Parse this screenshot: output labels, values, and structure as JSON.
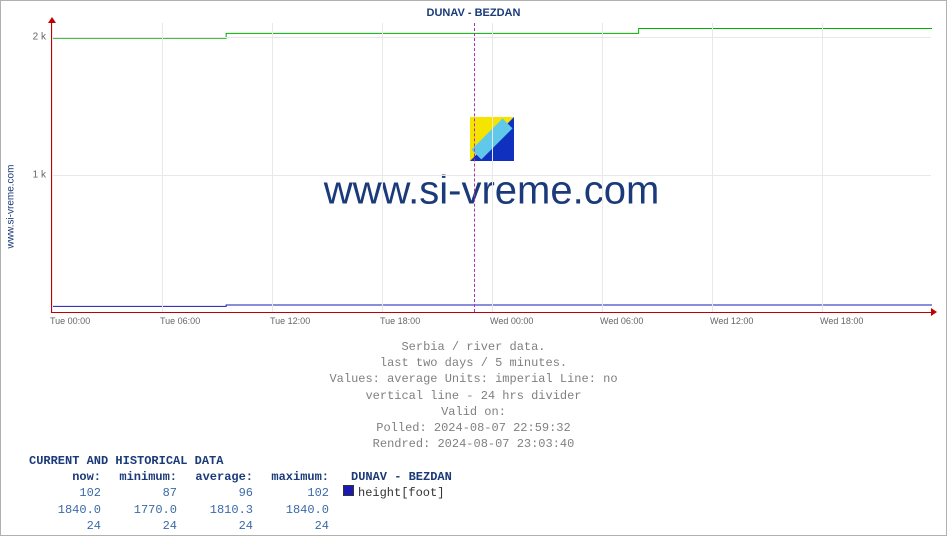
{
  "title": "DUNAV -  BEZDAN",
  "y_axis_label": "www.si-vreme.com",
  "watermark_text": "www.si-vreme.com",
  "chart": {
    "type": "line",
    "background_color": "#ffffff",
    "grid_color": "#e8e8e8",
    "axis_color": "#c00000",
    "divider_color": "#b030b0",
    "ylim": [
      0,
      2100
    ],
    "yticks": [
      {
        "pos": 1000,
        "label": "1 k"
      },
      {
        "pos": 2000,
        "label": "2 k"
      }
    ],
    "x_span_hours": 48,
    "xticks": [
      {
        "h": 0,
        "label": "Tue 00:00"
      },
      {
        "h": 6,
        "label": "Tue 06:00"
      },
      {
        "h": 12,
        "label": "Tue 12:00"
      },
      {
        "h": 18,
        "label": "Tue 18:00"
      },
      {
        "h": 24,
        "label": "Wed 00:00"
      },
      {
        "h": 30,
        "label": "Wed 06:00"
      },
      {
        "h": 36,
        "label": "Wed 12:00"
      },
      {
        "h": 42,
        "label": "Wed 18:00"
      }
    ],
    "divider_at_h": 23,
    "series": [
      {
        "name": "green",
        "color": "#00b000",
        "points": [
          {
            "h": 0,
            "v": 1990
          },
          {
            "h": 9.5,
            "v": 1990
          },
          {
            "h": 9.5,
            "v": 2025
          },
          {
            "h": 32,
            "v": 2025
          },
          {
            "h": 32,
            "v": 2060
          },
          {
            "h": 48,
            "v": 2060
          }
        ]
      },
      {
        "name": "blue",
        "color": "#1a1ab0",
        "points": [
          {
            "h": 0,
            "v": 48
          },
          {
            "h": 9.5,
            "v": 48
          },
          {
            "h": 9.5,
            "v": 58
          },
          {
            "h": 48,
            "v": 58
          }
        ]
      }
    ]
  },
  "caption": {
    "line1": "Serbia / river data.",
    "line2": "last two days / 5 minutes.",
    "line3": "Values: average  Units: imperial  Line: no",
    "line4": "vertical line - 24 hrs  divider",
    "line5": "Valid on:",
    "line6": "Polled: 2024-08-07 22:59:32",
    "line7": "Rendred: 2024-08-07 23:03:40"
  },
  "table": {
    "heading": "CURRENT AND HISTORICAL DATA",
    "columns": [
      "now:",
      "minimum:",
      "average:",
      "maximum:"
    ],
    "legend_label": "DUNAV -  BEZDAN",
    "legend_swatch_color": "#1a1ab0",
    "legend_metric": "height[foot]",
    "rows": [
      [
        "102",
        "87",
        "96",
        "102"
      ],
      [
        "1840.0",
        "1770.0",
        "1810.3",
        "1840.0"
      ],
      [
        "24",
        "24",
        "24",
        "24"
      ]
    ]
  }
}
